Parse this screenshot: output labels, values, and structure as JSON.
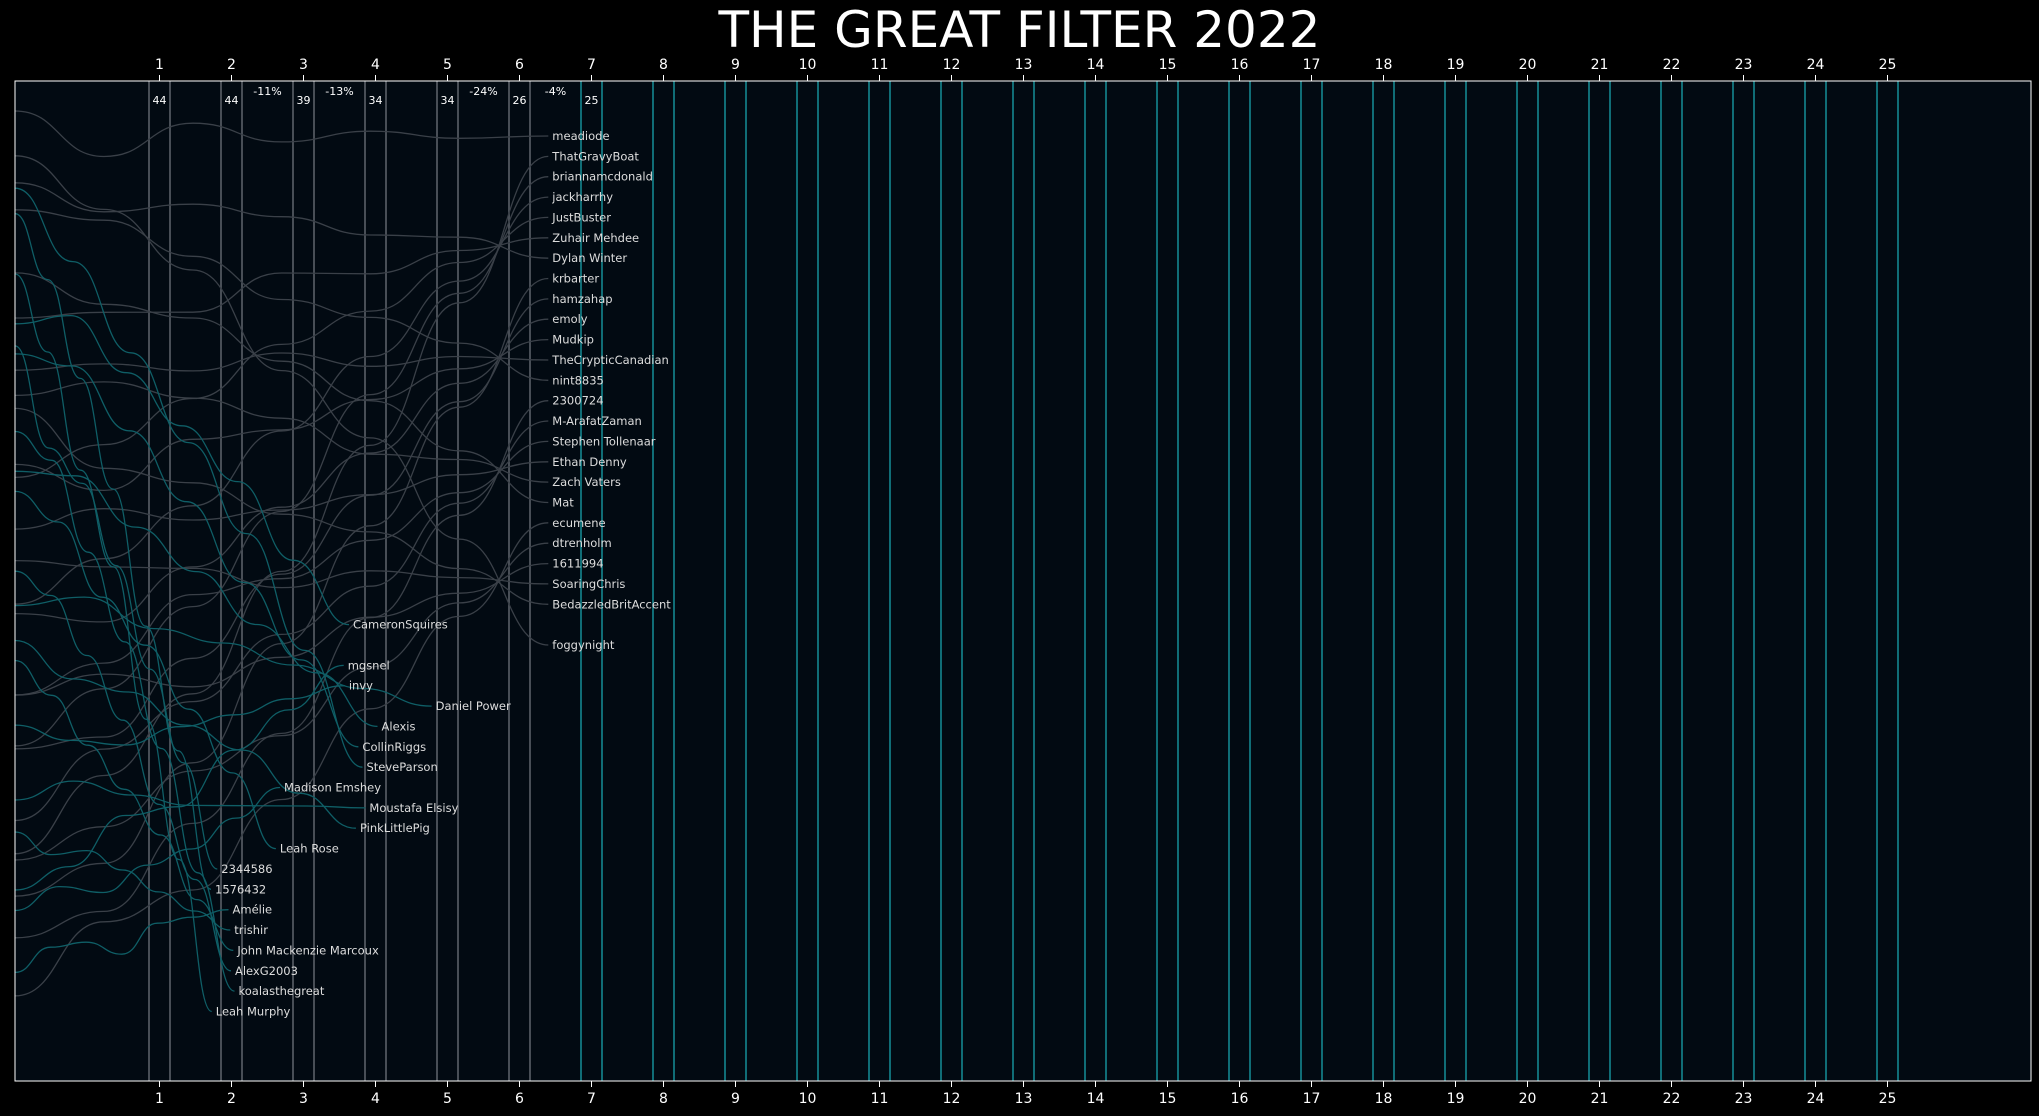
{
  "chart_data": {
    "type": "line",
    "title": "THE GREAT FILTER 2022",
    "xlabel": "",
    "ylabel": "",
    "x_ticks": [
      1,
      2,
      3,
      4,
      5,
      6,
      7,
      8,
      9,
      10,
      11,
      12,
      13,
      14,
      15,
      16,
      17,
      18,
      19,
      20,
      21,
      22,
      23,
      24,
      25
    ],
    "round_labels": [
      {
        "round": 1,
        "label": "44"
      },
      {
        "round": 2,
        "label": "44"
      },
      {
        "round": 2.5,
        "label": "-11%"
      },
      {
        "round": 3,
        "label": "39"
      },
      {
        "round": 3.5,
        "label": "-13%"
      },
      {
        "round": 4,
        "label": "34"
      },
      {
        "round": 5,
        "label": "34"
      },
      {
        "round": 5.5,
        "label": "-24%"
      },
      {
        "round": 6,
        "label": "26"
      },
      {
        "round": 6.5,
        "label": "-4%"
      },
      {
        "round": 7,
        "label": "25"
      }
    ],
    "series": [
      {
        "name": "meadiode",
        "eliminated_round": null
      },
      {
        "name": "ThatGravyBoat",
        "eliminated_round": null
      },
      {
        "name": "briannamcdonald",
        "eliminated_round": null
      },
      {
        "name": "jackharrhy",
        "eliminated_round": null
      },
      {
        "name": "JustBuster",
        "eliminated_round": null
      },
      {
        "name": "Zuhair Mehdee",
        "eliminated_round": null
      },
      {
        "name": "Dylan Winter",
        "eliminated_round": null
      },
      {
        "name": "krbarter",
        "eliminated_round": null
      },
      {
        "name": "hamzahap",
        "eliminated_round": null
      },
      {
        "name": "emoly",
        "eliminated_round": null
      },
      {
        "name": "Mudkip",
        "eliminated_round": null
      },
      {
        "name": "TheCrypticCanadian",
        "eliminated_round": null
      },
      {
        "name": "nint8835",
        "eliminated_round": null
      },
      {
        "name": "2300724",
        "eliminated_round": null
      },
      {
        "name": "M-ArafatZaman",
        "eliminated_round": null
      },
      {
        "name": "Stephen Tollenaar",
        "eliminated_round": null
      },
      {
        "name": "Ethan Denny",
        "eliminated_round": null
      },
      {
        "name": "Zach Vaters",
        "eliminated_round": null
      },
      {
        "name": "Mat",
        "eliminated_round": null
      },
      {
        "name": "ecumene",
        "eliminated_round": null
      },
      {
        "name": "dtrenholm",
        "eliminated_round": null
      },
      {
        "name": "1611994",
        "eliminated_round": null
      },
      {
        "name": "SoaringChris",
        "eliminated_round": null
      },
      {
        "name": "BedazzledBritAccent",
        "eliminated_round": null
      },
      {
        "name": "CameronSquires",
        "eliminated_round": 4
      },
      {
        "name": "foggynight",
        "eliminated_round": null
      },
      {
        "name": "mgsnel",
        "eliminated_round": 4
      },
      {
        "name": "invy",
        "eliminated_round": 4
      },
      {
        "name": "Daniel Power",
        "eliminated_round": 5
      },
      {
        "name": "Alexis",
        "eliminated_round": 4
      },
      {
        "name": "CollinRiggs",
        "eliminated_round": 4
      },
      {
        "name": "SteveParson",
        "eliminated_round": 4
      },
      {
        "name": "Madison Emshey",
        "eliminated_round": 3
      },
      {
        "name": "Moustafa Elsisy",
        "eliminated_round": 4
      },
      {
        "name": "PinkLittlePig",
        "eliminated_round": 4
      },
      {
        "name": "Leah Rose",
        "eliminated_round": 3
      },
      {
        "name": "2344586",
        "eliminated_round": 2
      },
      {
        "name": "1576432",
        "eliminated_round": 2
      },
      {
        "name": "Amélie",
        "eliminated_round": 2
      },
      {
        "name": "trishir",
        "eliminated_round": 2
      },
      {
        "name": "John Mackenzie Marcoux",
        "eliminated_round": 2
      },
      {
        "name": "AlexG2003",
        "eliminated_round": 2
      },
      {
        "name": "koalasthegreat",
        "eliminated_round": 2
      },
      {
        "name": "Leah Murphy",
        "eliminated_round": 2
      }
    ],
    "grid": false,
    "legend": "none"
  },
  "colors": {
    "background": "#000000",
    "plot_background": "#020a12",
    "frame": "#ffffff",
    "done_round_line": "#5a6068",
    "future_round_line": "#15868f",
    "active_line": "#3a4048",
    "eliminated_line": "#0f5e66",
    "text": "#ffffff"
  }
}
